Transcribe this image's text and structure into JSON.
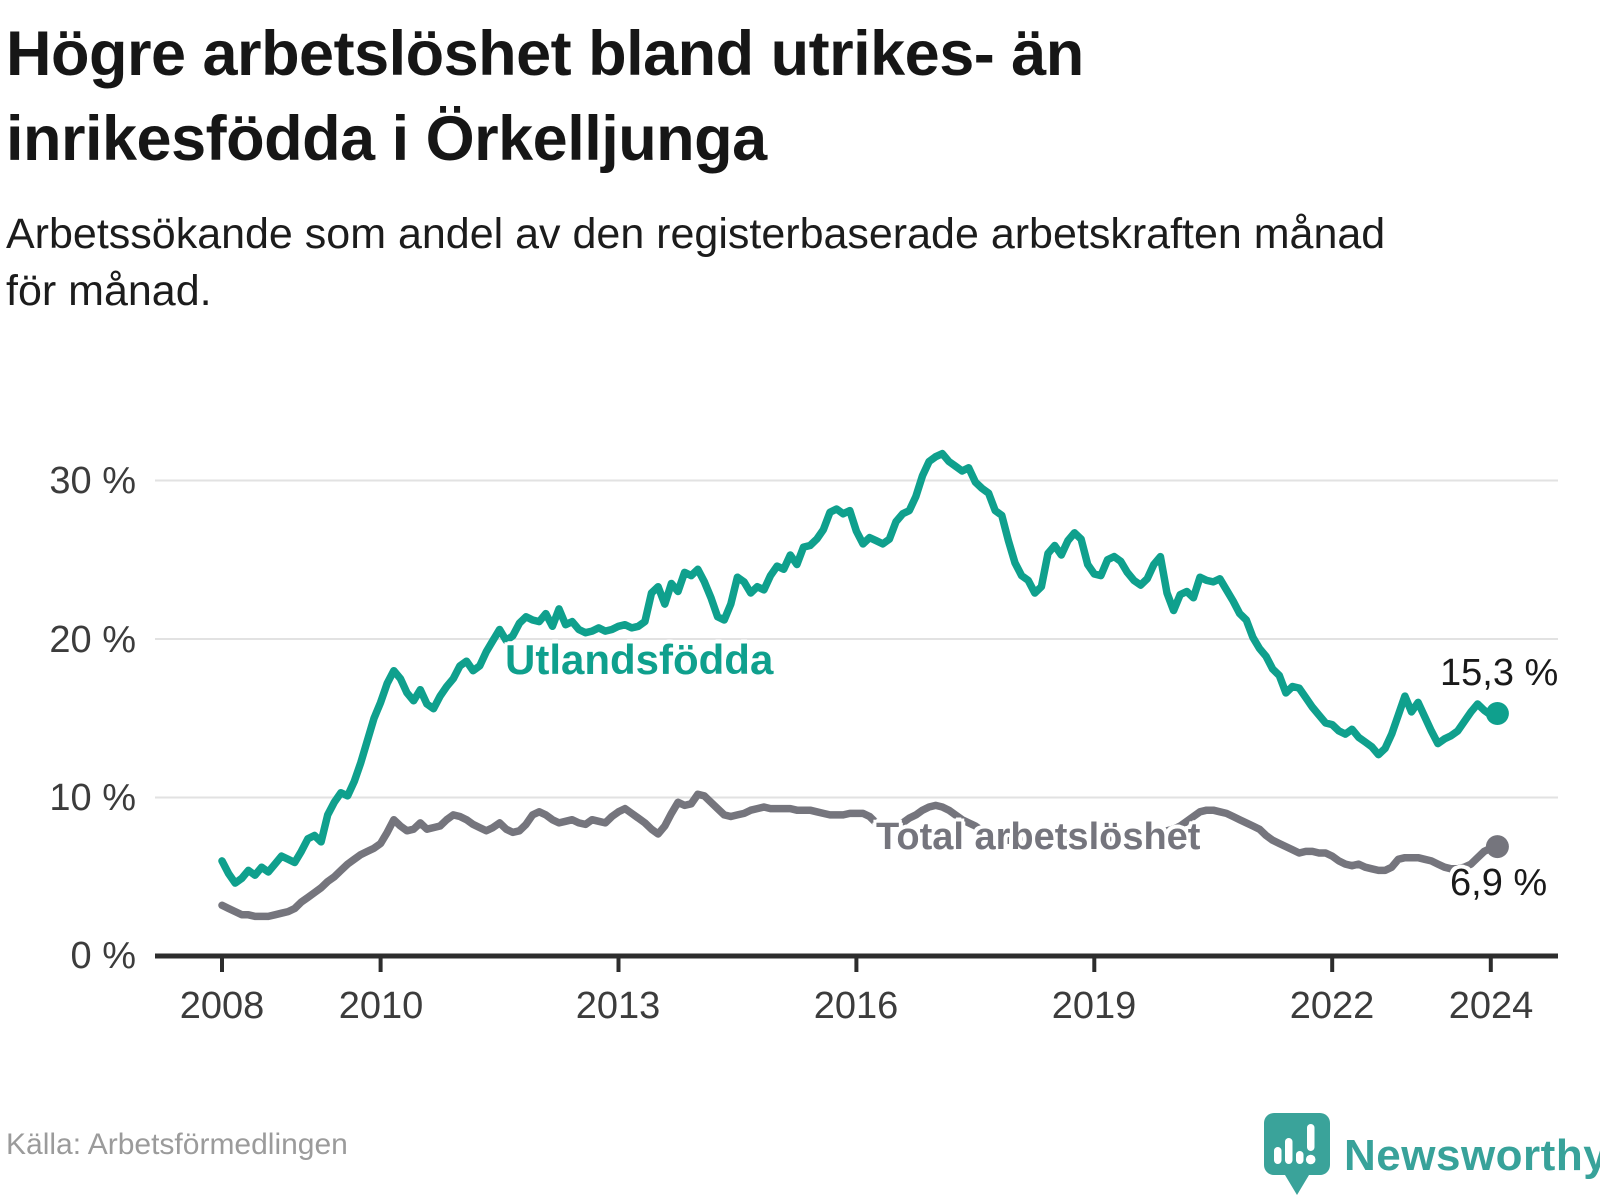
{
  "header": {
    "title_lines": [
      "Högre arbetslöshet bland utrikes- än",
      "inrikesfödda i Örkelljunga"
    ],
    "subtitle_lines": [
      "Arbetssökande som andel av den registerbaserade arbetskraften månad",
      "för månad."
    ]
  },
  "chart_data": {
    "type": "line",
    "x_start_year": 2008,
    "points_per_year": 12,
    "x_ticks": [
      {
        "value": 2008,
        "label": "2008"
      },
      {
        "value": 2010,
        "label": "2010"
      },
      {
        "value": 2013,
        "label": "2013"
      },
      {
        "value": 2016,
        "label": "2016"
      },
      {
        "value": 2019,
        "label": "2019"
      },
      {
        "value": 2022,
        "label": "2022"
      },
      {
        "value": 2024,
        "label": "2024"
      }
    ],
    "y_ticks": [
      {
        "value": 30,
        "label": "30 %"
      },
      {
        "value": 20,
        "label": "20 %"
      },
      {
        "value": 10,
        "label": "10 %"
      },
      {
        "value": 0,
        "label": "0 %"
      }
    ],
    "gridline_values": [
      10,
      20,
      30
    ],
    "ylim": [
      0,
      33
    ],
    "grid_on": true,
    "legend_position": "inline-labels",
    "series": [
      {
        "name": "Utlandsfödda",
        "color": "#0fa08d",
        "end_label": "15,3 %",
        "end_value": 15.3,
        "values": [
          6.0,
          5.2,
          4.6,
          4.9,
          5.4,
          5.1,
          5.6,
          5.3,
          5.8,
          6.3,
          6.1,
          5.9,
          6.6,
          7.4,
          7.6,
          7.2,
          8.9,
          9.7,
          10.3,
          10.1,
          11.0,
          12.2,
          13.6,
          15.0,
          16.0,
          17.2,
          18.0,
          17.5,
          16.6,
          16.1,
          16.8,
          15.9,
          15.6,
          16.4,
          17.0,
          17.5,
          18.3,
          18.6,
          18.0,
          18.3,
          19.2,
          19.9,
          20.6,
          19.9,
          20.2,
          21.0,
          21.4,
          21.2,
          21.1,
          21.6,
          20.8,
          21.9,
          20.9,
          21.1,
          20.6,
          20.4,
          20.5,
          20.7,
          20.5,
          20.6,
          20.8,
          20.9,
          20.7,
          20.8,
          21.1,
          22.9,
          23.3,
          22.2,
          23.5,
          23.0,
          24.2,
          24.0,
          24.4,
          23.6,
          22.6,
          21.4,
          21.2,
          22.2,
          23.9,
          23.6,
          22.9,
          23.3,
          23.1,
          24.0,
          24.6,
          24.4,
          25.3,
          24.7,
          25.8,
          25.9,
          26.3,
          26.9,
          28.0,
          28.2,
          27.9,
          28.1,
          26.8,
          26.0,
          26.4,
          26.2,
          26.0,
          26.3,
          27.4,
          27.9,
          28.1,
          29.0,
          30.3,
          31.2,
          31.5,
          31.7,
          31.2,
          30.9,
          30.6,
          30.8,
          29.9,
          29.5,
          29.2,
          28.1,
          27.8,
          26.2,
          24.8,
          24.0,
          23.7,
          22.9,
          23.3,
          25.4,
          25.9,
          25.3,
          26.2,
          26.7,
          26.3,
          24.7,
          24.1,
          24.0,
          25.0,
          25.2,
          24.9,
          24.2,
          23.7,
          23.4,
          23.8,
          24.7,
          25.2,
          22.9,
          21.8,
          22.8,
          23.0,
          22.6,
          23.9,
          23.7,
          23.6,
          23.8,
          23.1,
          22.4,
          21.6,
          21.2,
          20.1,
          19.4,
          18.9,
          18.1,
          17.7,
          16.6,
          17.0,
          16.9,
          16.3,
          15.7,
          15.2,
          14.7,
          14.6,
          14.2,
          14.0,
          14.3,
          13.8,
          13.5,
          13.2,
          12.7,
          13.1,
          14.0,
          15.2,
          16.4,
          15.4,
          16.0,
          15.1,
          14.2,
          13.4,
          13.7,
          13.9,
          14.2,
          14.8,
          15.4,
          15.9,
          15.5,
          15.2,
          15.3
        ]
      },
      {
        "name": "Total arbetslöshet",
        "color": "#75757d",
        "end_label": "6,9 %",
        "end_value": 6.9,
        "values": [
          3.2,
          3.0,
          2.8,
          2.6,
          2.6,
          2.5,
          2.5,
          2.5,
          2.6,
          2.7,
          2.8,
          3.0,
          3.4,
          3.7,
          4.0,
          4.3,
          4.7,
          5.0,
          5.4,
          5.8,
          6.1,
          6.4,
          6.6,
          6.8,
          7.1,
          7.8,
          8.6,
          8.2,
          7.9,
          8.0,
          8.4,
          8.0,
          8.1,
          8.2,
          8.6,
          8.9,
          8.8,
          8.6,
          8.3,
          8.1,
          7.9,
          8.1,
          8.4,
          8.0,
          7.8,
          7.9,
          8.3,
          8.9,
          9.1,
          8.9,
          8.6,
          8.4,
          8.5,
          8.6,
          8.4,
          8.3,
          8.6,
          8.5,
          8.4,
          8.8,
          9.1,
          9.3,
          9.0,
          8.7,
          8.4,
          8.0,
          7.7,
          8.2,
          9.0,
          9.7,
          9.5,
          9.6,
          10.2,
          10.1,
          9.7,
          9.3,
          8.9,
          8.8,
          8.9,
          9.0,
          9.2,
          9.3,
          9.4,
          9.3,
          9.3,
          9.3,
          9.3,
          9.2,
          9.2,
          9.2,
          9.1,
          9.0,
          8.9,
          8.9,
          8.9,
          9.0,
          9.0,
          9.0,
          8.8,
          8.4,
          8.1,
          8.0,
          8.2,
          8.4,
          8.7,
          8.9,
          9.2,
          9.4,
          9.5,
          9.4,
          9.2,
          8.9,
          8.6,
          8.4,
          8.2,
          7.9,
          7.6,
          7.4,
          7.3,
          7.3,
          7.4,
          7.4,
          7.3,
          7.2,
          7.2,
          7.1,
          7.1,
          7.2,
          7.2,
          7.3,
          7.3,
          7.4,
          7.4,
          7.4,
          7.4,
          7.5,
          7.5,
          7.6,
          7.6,
          7.7,
          7.7,
          7.8,
          7.8,
          7.9,
          8.0,
          8.2,
          8.5,
          8.8,
          9.1,
          9.2,
          9.2,
          9.1,
          9.0,
          8.8,
          8.6,
          8.4,
          8.2,
          8.0,
          7.6,
          7.3,
          7.1,
          6.9,
          6.7,
          6.5,
          6.6,
          6.6,
          6.5,
          6.5,
          6.3,
          6.0,
          5.8,
          5.7,
          5.8,
          5.6,
          5.5,
          5.4,
          5.4,
          5.6,
          6.1,
          6.2,
          6.2,
          6.2,
          6.1,
          6.0,
          5.8,
          5.6,
          5.5,
          5.5,
          5.6,
          5.8,
          6.2,
          6.6,
          6.8,
          6.9
        ]
      }
    ]
  },
  "footer": {
    "source": "Källa: Arbetsförmedlingen",
    "brand_name": "Newsworthy"
  },
  "colors": {
    "accent_teal": "#0fa08d",
    "neutral_gray": "#75757d",
    "brand_teal": "#38a29a",
    "grid": "#e2e2e2",
    "axis": "#2d2d2d"
  }
}
